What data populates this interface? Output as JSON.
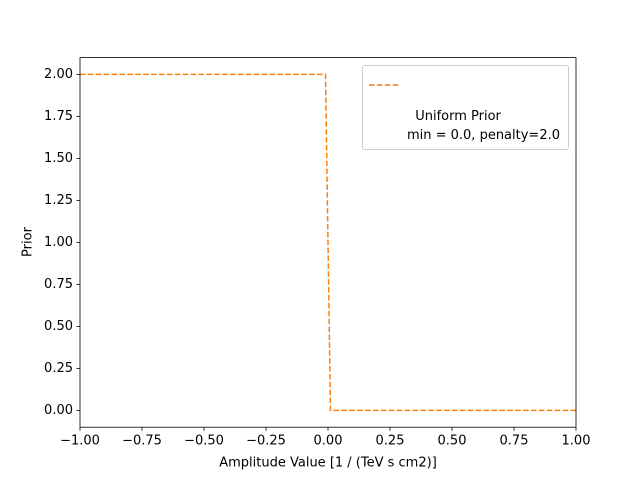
{
  "chart_data": {
    "type": "line",
    "xlabel": "Amplitude Value [1 / (TeV s cm2)]",
    "ylabel": "Prior",
    "x": [
      -1,
      -0.01,
      0.01,
      1
    ],
    "series": [
      {
        "name": "Uniform Prior\nmin = 0.0, penalty=2.0",
        "color": "#ff7f0e",
        "dashed": true,
        "values": [
          2,
          2,
          0,
          0
        ]
      }
    ],
    "xlim": [
      -1,
      1
    ],
    "ylim": [
      -0.1,
      2.1
    ],
    "xticks": [
      {
        "value": -1,
        "label": "−1.00"
      },
      {
        "value": -0.75,
        "label": "−0.75"
      },
      {
        "value": -0.5,
        "label": "−0.50"
      },
      {
        "value": -0.25,
        "label": "−0.25"
      },
      {
        "value": 0,
        "label": "0.00"
      },
      {
        "value": 0.25,
        "label": "0.25"
      },
      {
        "value": 0.5,
        "label": "0.50"
      },
      {
        "value": 0.75,
        "label": "0.75"
      },
      {
        "value": 1,
        "label": "1.00"
      }
    ],
    "yticks": [
      {
        "value": 0,
        "label": "0.00"
      },
      {
        "value": 0.25,
        "label": "0.25"
      },
      {
        "value": 0.5,
        "label": "0.50"
      },
      {
        "value": 0.75,
        "label": "0.75"
      },
      {
        "value": 1,
        "label": "1.00"
      },
      {
        "value": 1.25,
        "label": "1.25"
      },
      {
        "value": 1.5,
        "label": "1.50"
      },
      {
        "value": 1.75,
        "label": "1.75"
      },
      {
        "value": 2,
        "label": "2.00"
      }
    ],
    "legend": "upper right",
    "grid": false
  }
}
